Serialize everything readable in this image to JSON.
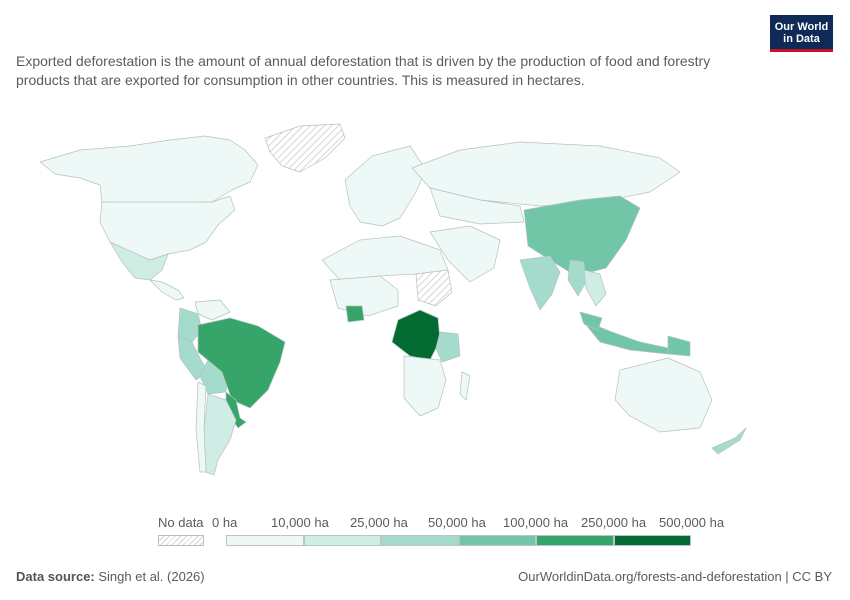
{
  "logo": {
    "line1": "Our World",
    "line2": "in Data"
  },
  "subtitle": "Exported deforestation is the amount of annual deforestation that is driven by the production of food and forestry products that are exported for consumption in other countries. This is measured in hectares.",
  "legend": {
    "no_data_label": "No data",
    "labels": [
      "0 ha",
      "10,000 ha",
      "25,000 ha",
      "50,000 ha",
      "100,000 ha",
      "250,000 ha",
      "500,000 ha"
    ],
    "colors": [
      "#eef8f6",
      "#cfece5",
      "#a5dbcd",
      "#72c6a8",
      "#37a56a",
      "#036b32"
    ],
    "no_data_color": "#e2e2e2"
  },
  "footer": {
    "source_label": "Data source:",
    "source_value": "Singh et al. (2026)",
    "url": "OurWorldinData.org/forests-and-deforestation | CC BY"
  },
  "map_data": {
    "regions": [
      {
        "name": "Canada",
        "bin": 0
      },
      {
        "name": "United States",
        "bin": 0
      },
      {
        "name": "Greenland",
        "bin": "no-data"
      },
      {
        "name": "Mexico",
        "bin": 1
      },
      {
        "name": "Central America",
        "bin": 0
      },
      {
        "name": "Colombia",
        "bin": 2
      },
      {
        "name": "Venezuela",
        "bin": 0
      },
      {
        "name": "Peru",
        "bin": 2
      },
      {
        "name": "Bolivia",
        "bin": 2
      },
      {
        "name": "Brazil",
        "bin": 4
      },
      {
        "name": "Paraguay",
        "bin": 4
      },
      {
        "name": "Argentina",
        "bin": 1
      },
      {
        "name": "Chile",
        "bin": 0
      },
      {
        "name": "Europe",
        "bin": 0
      },
      {
        "name": "Russia",
        "bin": 0
      },
      {
        "name": "Kazakhstan and Central Asia",
        "bin": 0
      },
      {
        "name": "China",
        "bin": 3
      },
      {
        "name": "India",
        "bin": 2
      },
      {
        "name": "Myanmar",
        "bin": 2
      },
      {
        "name": "Southeast Asia mainland",
        "bin": 1
      },
      {
        "name": "Indonesia",
        "bin": 3
      },
      {
        "name": "Malaysia",
        "bin": 3
      },
      {
        "name": "Papua New Guinea",
        "bin": 3
      },
      {
        "name": "Australia",
        "bin": 0
      },
      {
        "name": "New Zealand",
        "bin": 2
      },
      {
        "name": "North Africa",
        "bin": 0
      },
      {
        "name": "West Africa",
        "bin": 0
      },
      {
        "name": "Ivory Coast",
        "bin": 4
      },
      {
        "name": "Sudan",
        "bin": "no-data"
      },
      {
        "name": "Democratic Republic of Congo",
        "bin": 5
      },
      {
        "name": "Tanzania",
        "bin": 2
      },
      {
        "name": "Southern Africa",
        "bin": 0
      },
      {
        "name": "Madagascar",
        "bin": 0
      },
      {
        "name": "Middle East",
        "bin": 0
      }
    ]
  }
}
